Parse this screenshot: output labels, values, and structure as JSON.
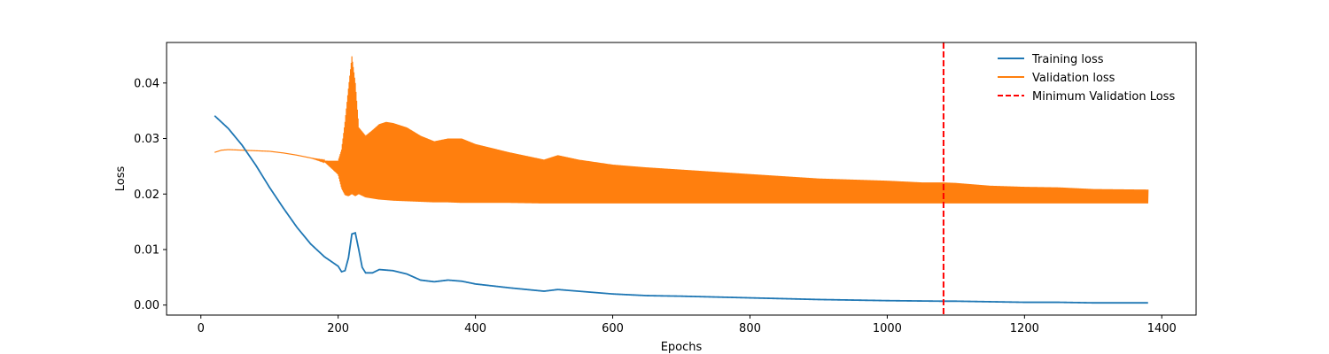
{
  "chart_data": {
    "type": "line",
    "title": "",
    "xlabel": "Epochs",
    "ylabel": "Loss",
    "xlim": [
      -50,
      1450
    ],
    "ylim": [
      -0.0018,
      0.0473
    ],
    "xticks": [
      0,
      200,
      400,
      600,
      800,
      1000,
      1200,
      1400
    ],
    "yticks": [
      0.0,
      0.01,
      0.02,
      0.03,
      0.04
    ],
    "ytick_labels": [
      "0.00",
      "0.01",
      "0.02",
      "0.03",
      "0.04"
    ],
    "legend_position": "top-right",
    "series": [
      {
        "name": "Training loss",
        "color": "#1f77b4",
        "x": [
          20,
          40,
          60,
          80,
          100,
          120,
          140,
          160,
          180,
          200,
          205,
          210,
          215,
          220,
          225,
          230,
          235,
          240,
          250,
          260,
          280,
          300,
          320,
          340,
          360,
          380,
          400,
          450,
          500,
          520,
          550,
          600,
          650,
          700,
          800,
          900,
          1000,
          1080,
          1100,
          1150,
          1200,
          1250,
          1300,
          1380
        ],
        "y": [
          0.0341,
          0.0318,
          0.0288,
          0.0252,
          0.0212,
          0.0175,
          0.014,
          0.011,
          0.0087,
          0.007,
          0.006,
          0.0062,
          0.0085,
          0.0128,
          0.013,
          0.01,
          0.0068,
          0.0058,
          0.0058,
          0.0064,
          0.0062,
          0.0056,
          0.0045,
          0.0042,
          0.0045,
          0.0043,
          0.0038,
          0.0031,
          0.0025,
          0.0028,
          0.0025,
          0.002,
          0.0017,
          0.0016,
          0.0013,
          0.001,
          0.0008,
          0.0007,
          0.0007,
          0.0006,
          0.0005,
          0.0005,
          0.0004,
          0.0004
        ]
      },
      {
        "name": "Validation loss",
        "color": "#ff7f0e",
        "x": [
          20,
          30,
          40,
          60,
          80,
          100,
          120,
          140,
          160,
          180,
          200,
          205,
          210,
          215,
          220,
          225,
          230,
          240,
          250,
          260,
          270,
          280,
          300,
          320,
          340,
          360,
          380,
          400,
          450,
          500,
          520,
          550,
          600,
          650,
          700,
          800,
          900,
          1000,
          1050,
          1080,
          1100,
          1150,
          1200,
          1250,
          1300,
          1380
        ],
        "upper": [
          0.0275,
          0.0279,
          0.028,
          0.0279,
          0.0278,
          0.0277,
          0.0274,
          0.027,
          0.0265,
          0.026,
          0.026,
          0.028,
          0.033,
          0.039,
          0.0448,
          0.04,
          0.032,
          0.0305,
          0.0315,
          0.0326,
          0.033,
          0.0328,
          0.032,
          0.0305,
          0.0295,
          0.03,
          0.03,
          0.029,
          0.0275,
          0.0262,
          0.027,
          0.0262,
          0.0253,
          0.0248,
          0.0244,
          0.0236,
          0.0228,
          0.0224,
          0.0221,
          0.0221,
          0.022,
          0.0215,
          0.0213,
          0.0212,
          0.0209,
          0.0208
        ],
        "lower": [
          0.0275,
          0.0279,
          0.028,
          0.0279,
          0.0278,
          0.0277,
          0.0274,
          0.027,
          0.0265,
          0.0258,
          0.0235,
          0.021,
          0.0198,
          0.0196,
          0.02,
          0.0196,
          0.02,
          0.0194,
          0.0192,
          0.019,
          0.0189,
          0.0188,
          0.0187,
          0.0186,
          0.0185,
          0.0185,
          0.0184,
          0.0184,
          0.0184,
          0.0183,
          0.0183,
          0.0183,
          0.0183,
          0.0183,
          0.0183,
          0.0183,
          0.0183,
          0.0183,
          0.0183,
          0.0183,
          0.0183,
          0.0183,
          0.0183,
          0.0183,
          0.0183,
          0.0183
        ]
      }
    ],
    "vline": {
      "name": "Minimum Validation Loss",
      "x": 1082,
      "color": "#ff0000",
      "style": "dashed"
    }
  }
}
